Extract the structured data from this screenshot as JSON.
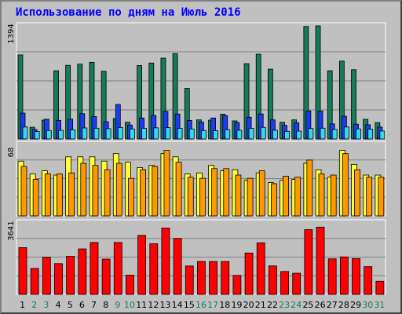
{
  "title": "Использование по дням на Июль 2016",
  "colors": {
    "background": "#c0c0c0",
    "title": "#0000ff",
    "visits": "#157c5a",
    "pages": "#1d3cf2",
    "hosts": "#32d8f0",
    "files": "#ffff33",
    "files_orange": "#ff9900",
    "traffic": "#ff0000",
    "day_weekday": "#000000",
    "day_weekend": "#1a7a46"
  },
  "chart_data": [
    {
      "type": "bar",
      "ymax_label": "1394",
      "categories": [
        "1",
        "2",
        "3",
        "4",
        "5",
        "6",
        "7",
        "8",
        "9",
        "10",
        "11",
        "12",
        "13",
        "14",
        "15",
        "16",
        "17",
        "18",
        "19",
        "20",
        "21",
        "22",
        "23",
        "24",
        "25",
        "26",
        "27",
        "28",
        "29",
        "30",
        "31"
      ],
      "series": [
        {
          "values": [
            1022,
            143,
            229,
            830,
            896,
            910,
            932,
            824,
            249,
            204,
            893,
            924,
            983,
            1038,
            616,
            232,
            229,
            301,
            220,
            916,
            1031,
            849,
            203,
            232,
            1368,
            1375,
            830,
            947,
            842,
            239,
            199
          ]
        },
        {
          "values": [
            315,
            115,
            240,
            226,
            240,
            308,
            272,
            210,
            420,
            170,
            255,
            285,
            336,
            303,
            225,
            205,
            255,
            285,
            200,
            265,
            304,
            232,
            165,
            195,
            341,
            340,
            183,
            277,
            180,
            173,
            144
          ]
        },
        {
          "values": [
            145,
            90,
            103,
            104,
            112,
            134,
            130,
            125,
            140,
            122,
            129,
            135,
            138,
            129,
            121,
            102,
            100,
            113,
            105,
            130,
            141,
            106,
            92,
            95,
            127,
            131,
            116,
            145,
            122,
            119,
            96
          ]
        }
      ]
    },
    {
      "type": "bar",
      "ymax_label": "68",
      "series": [
        {
          "values": [
            51,
            39,
            42,
            38,
            55,
            55,
            55,
            51,
            58,
            50,
            45,
            47,
            58,
            55,
            39,
            40,
            47,
            42,
            43,
            33,
            40,
            31,
            33,
            34,
            49,
            43,
            36,
            61,
            48,
            38,
            38
          ]
        },
        {
          "values": [
            46,
            34,
            39,
            39,
            40,
            49,
            47,
            43,
            49,
            35,
            43,
            46,
            61,
            50,
            36,
            35,
            44,
            44,
            38,
            35,
            42,
            30,
            37,
            36,
            52,
            39,
            38,
            58,
            43,
            36,
            36
          ]
        }
      ]
    },
    {
      "type": "bar",
      "ymax_label": "3641",
      "series": [
        {
          "values": [
            2331,
            1294,
            1851,
            1535,
            1900,
            2269,
            2590,
            1760,
            2589,
            959,
            2943,
            2525,
            3307,
            2789,
            1416,
            1640,
            1640,
            1639,
            947,
            2064,
            2572,
            1420,
            1143,
            1056,
            3231,
            3355,
            1771,
            1869,
            1787,
            1383,
            655
          ]
        }
      ]
    }
  ]
}
